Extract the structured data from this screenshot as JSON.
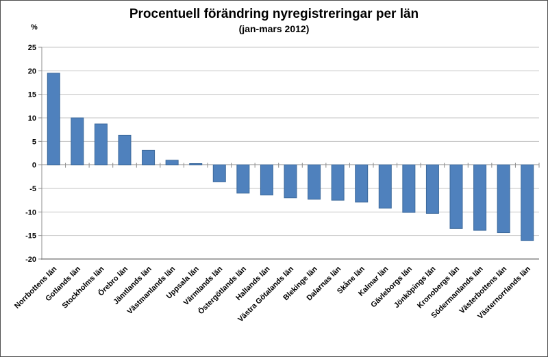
{
  "chart_data": {
    "type": "bar",
    "title": "Procentuell förändring nyregistreringar per län",
    "subtitle": "(jan-mars 2012)",
    "ylabel": "%",
    "xlabel": "",
    "ylim": [
      -20,
      25
    ],
    "yticks": [
      25,
      20,
      15,
      10,
      5,
      0,
      -5,
      -10,
      -15,
      -20
    ],
    "grid": "horizontal",
    "legend": "none",
    "categories": [
      "Norrbottens län",
      "Gotlands län",
      "Stockholms län",
      "Örebro län",
      "Jämtlands län",
      "Västmanlands län",
      "Uppsala län",
      "Värmlands län",
      "Östergötlands län",
      "Hallands län",
      "Västra Götalands län",
      "Blekinge län",
      "Dalarnas län",
      "Skåne län",
      "Kalmar län",
      "Gävleborgs län",
      "Jönköpings län",
      "Kronobergs län",
      "Södermanlands län",
      "Västerbottens län",
      "Västernorrlands län"
    ],
    "values": [
      19.5,
      10.0,
      8.7,
      6.3,
      3.1,
      1.0,
      0.3,
      -3.6,
      -6.0,
      -6.4,
      -7.0,
      -7.3,
      -7.5,
      -7.9,
      -9.2,
      -10.1,
      -10.3,
      -13.5,
      -13.9,
      -14.4,
      -16.1
    ],
    "colors": {
      "bar_fill": "#4F81BD",
      "bar_border": "#3C699B",
      "gridline": "#C3C3C3",
      "axis": "#8C8C8C",
      "baseline": "#A6A6A6",
      "text": "#000000",
      "frame_border": "#4d4d4d",
      "background": "#FFFFFF"
    }
  }
}
